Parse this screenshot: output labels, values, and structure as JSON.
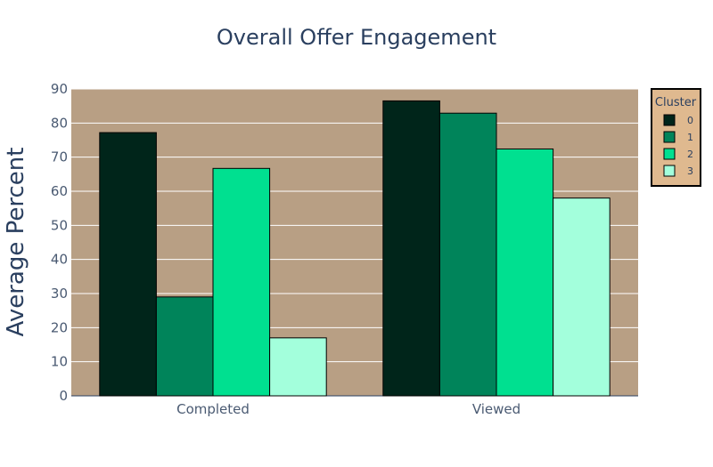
{
  "chart_data": {
    "type": "bar",
    "title": "Overall Offer Engagement",
    "xlabel": "",
    "ylabel": "Average Percent",
    "categories": [
      "Completed",
      "Viewed"
    ],
    "series": [
      {
        "name": "0",
        "values": [
          77.2,
          86.5
        ],
        "color": "#00251a"
      },
      {
        "name": "1",
        "values": [
          29.0,
          82.9
        ],
        "color": "#00845a"
      },
      {
        "name": "2",
        "values": [
          66.7,
          72.4
        ],
        "color": "#00e090"
      },
      {
        "name": "3",
        "values": [
          17.0,
          58.0
        ],
        "color": "#a3ffdc"
      }
    ],
    "ylim": [
      0,
      90
    ],
    "yticks": [
      0,
      10,
      20,
      30,
      40,
      50,
      60,
      70,
      80,
      90
    ],
    "grid": true,
    "legend": {
      "title": "Cluster",
      "placement": "top-right"
    },
    "colors": {
      "plot_background": "#b89f84",
      "legend_background": "#dfb98f",
      "gridline": "#ffffff",
      "bar_outline": "#000000"
    }
  }
}
